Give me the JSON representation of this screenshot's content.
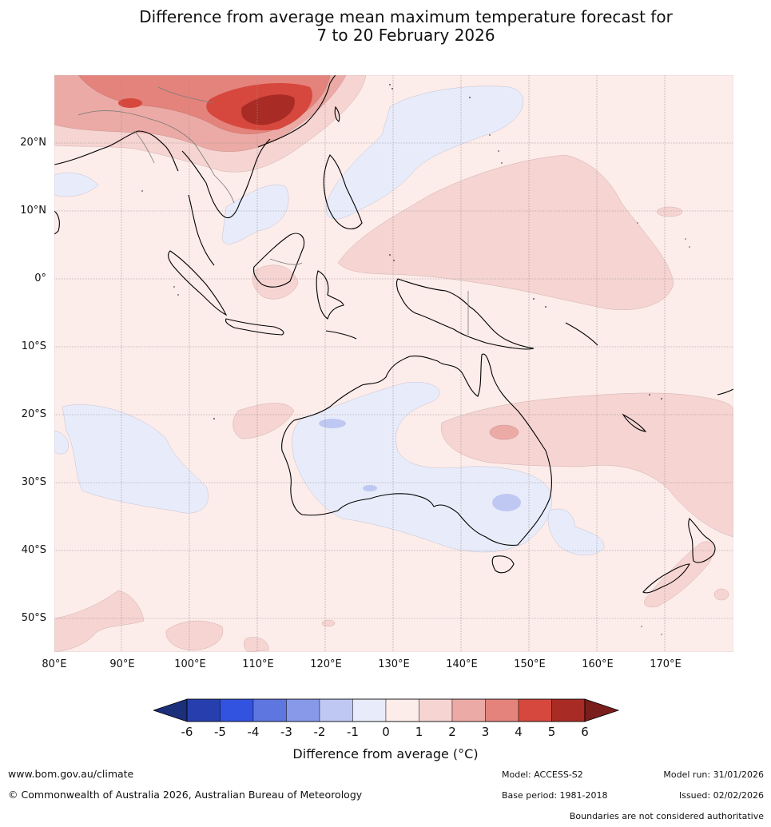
{
  "title_line1": "Difference from average mean maximum temperature forecast for",
  "title_line2": "7 to 20 February 2026",
  "latitude_labels": [
    "20°N",
    "10°N",
    "0°",
    "10°S",
    "20°S",
    "30°S",
    "40°S",
    "50°S"
  ],
  "longitude_labels": [
    "80°E",
    "90°E",
    "100°E",
    "110°E",
    "120°E",
    "130°E",
    "140°E",
    "150°E",
    "160°E",
    "170°E"
  ],
  "colorbar": {
    "ticks": [
      "-6",
      "-5",
      "-4",
      "-3",
      "-2",
      "-1",
      "0",
      "1",
      "2",
      "3",
      "4",
      "5",
      "6"
    ],
    "colors": [
      "#273fae",
      "#3253e0",
      "#5d76e0",
      "#8799e8",
      "#bfc8f2",
      "#e8ecfa",
      "#fcecea",
      "#f5d4d2",
      "#ebaaa5",
      "#e4837c",
      "#d6483d",
      "#a82c25"
    ],
    "under_color": "#1b2f7a",
    "over_color": "#7a1e1c",
    "label": "Difference from average (°C)"
  },
  "legend_regions": {
    "strong_warm": "#a82c25",
    "warm_4": "#d6483d",
    "warm_3": "#e4837c",
    "warm_2": "#ebaaa5",
    "warm_1": "#f5d4d2",
    "neutral_warm": "#fcecea",
    "cool_1": "#e8ecfa",
    "cool_2": "#bfc8f2"
  },
  "footer": {
    "website": "www.bom.gov.au/climate",
    "copyright": "© Commonwealth of Australia 2026, Australian Bureau of Meteorology",
    "model": "Model: ACCESS-S2",
    "base_period": "Base period: 1981-2018",
    "model_run": "Model run: 31/01/2026",
    "issued": "Issued: 02/02/2026",
    "disclaimer": "Boundaries are not considered authoritative"
  }
}
